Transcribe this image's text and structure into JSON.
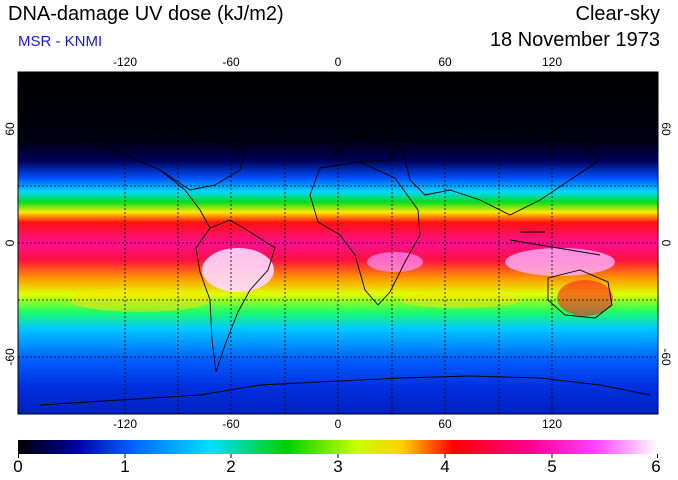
{
  "header": {
    "title": "DNA-damage UV dose (kJ/m2)",
    "subtitle": "MSR - KNMI",
    "condition": "Clear-sky",
    "date": "18 November 1973"
  },
  "map": {
    "projection": "equirectangular",
    "lon_range": [
      -180,
      180
    ],
    "lat_range": [
      -90,
      90
    ],
    "lon_ticks": [
      "-120",
      "-60",
      "0",
      "60",
      "120"
    ],
    "lat_ticks": [
      "60",
      "0",
      "-60"
    ],
    "grid": "dashed, every 30 degrees"
  },
  "colorbar": {
    "min": 0,
    "max": 6,
    "tick_labels": [
      "0",
      "1",
      "2",
      "3",
      "4",
      "5",
      "6"
    ],
    "colors": [
      "#000000",
      "#0000a0",
      "#0064ff",
      "#00e0ff",
      "#00d000",
      "#c8ff00",
      "#ffd000",
      "#ff0000",
      "#ff0090",
      "#ff40ff",
      "#ffd0ff",
      "#ffffff"
    ]
  }
}
